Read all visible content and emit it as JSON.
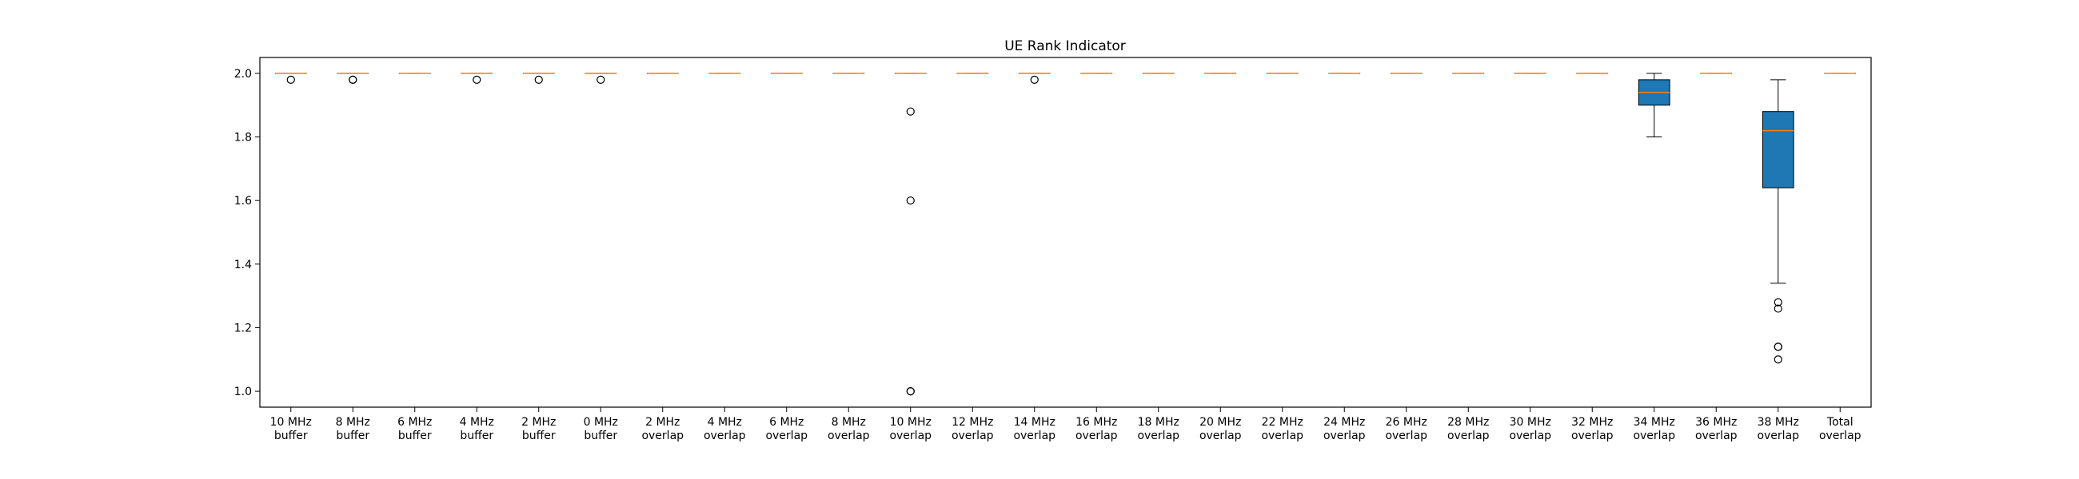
{
  "chart_data": {
    "type": "boxplot",
    "title": "UE Rank Indicator",
    "xlabel": "",
    "ylabel": "",
    "ylim": [
      0.95,
      2.05
    ],
    "yticks": [
      "1.0",
      "1.2",
      "1.4",
      "1.6",
      "1.8",
      "2.0"
    ],
    "grid": false,
    "colors": {
      "box_fill": "#1f77b4",
      "median": "#ff7f0e",
      "outline": "#000000"
    },
    "categories": [
      {
        "line1": "10 MHz",
        "line2": "buffer"
      },
      {
        "line1": "8 MHz",
        "line2": "buffer"
      },
      {
        "line1": "6 MHz",
        "line2": "buffer"
      },
      {
        "line1": "4 MHz",
        "line2": "buffer"
      },
      {
        "line1": "2 MHz",
        "line2": "buffer"
      },
      {
        "line1": "0 MHz",
        "line2": "buffer"
      },
      {
        "line1": "2 MHz",
        "line2": "overlap"
      },
      {
        "line1": "4 MHz",
        "line2": "overlap"
      },
      {
        "line1": "6 MHz",
        "line2": "overlap"
      },
      {
        "line1": "8 MHz",
        "line2": "overlap"
      },
      {
        "line1": "10 MHz",
        "line2": "overlap"
      },
      {
        "line1": "12 MHz",
        "line2": "overlap"
      },
      {
        "line1": "14 MHz",
        "line2": "overlap"
      },
      {
        "line1": "16 MHz",
        "line2": "overlap"
      },
      {
        "line1": "18 MHz",
        "line2": "overlap"
      },
      {
        "line1": "20 MHz",
        "line2": "overlap"
      },
      {
        "line1": "22 MHz",
        "line2": "overlap"
      },
      {
        "line1": "24 MHz",
        "line2": "overlap"
      },
      {
        "line1": "26 MHz",
        "line2": "overlap"
      },
      {
        "line1": "28 MHz",
        "line2": "overlap"
      },
      {
        "line1": "30 MHz",
        "line2": "overlap"
      },
      {
        "line1": "32 MHz",
        "line2": "overlap"
      },
      {
        "line1": "34 MHz",
        "line2": "overlap"
      },
      {
        "line1": "36 MHz",
        "line2": "overlap"
      },
      {
        "line1": "38 MHz",
        "line2": "overlap"
      },
      {
        "line1": "Total",
        "line2": "overlap"
      }
    ],
    "boxes": [
      {
        "q1": 2.0,
        "median": 2.0,
        "q3": 2.0,
        "whisker_low": 2.0,
        "whisker_high": 2.0,
        "outliers": [
          1.98
        ]
      },
      {
        "q1": 2.0,
        "median": 2.0,
        "q3": 2.0,
        "whisker_low": 2.0,
        "whisker_high": 2.0,
        "outliers": [
          1.98,
          1.98
        ]
      },
      {
        "q1": 2.0,
        "median": 2.0,
        "q3": 2.0,
        "whisker_low": 2.0,
        "whisker_high": 2.0,
        "outliers": []
      },
      {
        "q1": 2.0,
        "median": 2.0,
        "q3": 2.0,
        "whisker_low": 2.0,
        "whisker_high": 2.0,
        "outliers": [
          1.98
        ]
      },
      {
        "q1": 2.0,
        "median": 2.0,
        "q3": 2.0,
        "whisker_low": 2.0,
        "whisker_high": 2.0,
        "outliers": [
          1.98
        ]
      },
      {
        "q1": 2.0,
        "median": 2.0,
        "q3": 2.0,
        "whisker_low": 2.0,
        "whisker_high": 2.0,
        "outliers": [
          1.98
        ]
      },
      {
        "q1": 2.0,
        "median": 2.0,
        "q3": 2.0,
        "whisker_low": 2.0,
        "whisker_high": 2.0,
        "outliers": []
      },
      {
        "q1": 2.0,
        "median": 2.0,
        "q3": 2.0,
        "whisker_low": 2.0,
        "whisker_high": 2.0,
        "outliers": []
      },
      {
        "q1": 2.0,
        "median": 2.0,
        "q3": 2.0,
        "whisker_low": 2.0,
        "whisker_high": 2.0,
        "outliers": []
      },
      {
        "q1": 2.0,
        "median": 2.0,
        "q3": 2.0,
        "whisker_low": 2.0,
        "whisker_high": 2.0,
        "outliers": []
      },
      {
        "q1": 2.0,
        "median": 2.0,
        "q3": 2.0,
        "whisker_low": 2.0,
        "whisker_high": 2.0,
        "outliers": [
          1.88,
          1.6,
          1.0,
          1.0
        ]
      },
      {
        "q1": 2.0,
        "median": 2.0,
        "q3": 2.0,
        "whisker_low": 2.0,
        "whisker_high": 2.0,
        "outliers": []
      },
      {
        "q1": 2.0,
        "median": 2.0,
        "q3": 2.0,
        "whisker_low": 2.0,
        "whisker_high": 2.0,
        "outliers": [
          1.98
        ]
      },
      {
        "q1": 2.0,
        "median": 2.0,
        "q3": 2.0,
        "whisker_low": 2.0,
        "whisker_high": 2.0,
        "outliers": []
      },
      {
        "q1": 2.0,
        "median": 2.0,
        "q3": 2.0,
        "whisker_low": 2.0,
        "whisker_high": 2.0,
        "outliers": []
      },
      {
        "q1": 2.0,
        "median": 2.0,
        "q3": 2.0,
        "whisker_low": 2.0,
        "whisker_high": 2.0,
        "outliers": []
      },
      {
        "q1": 2.0,
        "median": 2.0,
        "q3": 2.0,
        "whisker_low": 2.0,
        "whisker_high": 2.0,
        "outliers": []
      },
      {
        "q1": 2.0,
        "median": 2.0,
        "q3": 2.0,
        "whisker_low": 2.0,
        "whisker_high": 2.0,
        "outliers": []
      },
      {
        "q1": 2.0,
        "median": 2.0,
        "q3": 2.0,
        "whisker_low": 2.0,
        "whisker_high": 2.0,
        "outliers": []
      },
      {
        "q1": 2.0,
        "median": 2.0,
        "q3": 2.0,
        "whisker_low": 2.0,
        "whisker_high": 2.0,
        "outliers": []
      },
      {
        "q1": 2.0,
        "median": 2.0,
        "q3": 2.0,
        "whisker_low": 2.0,
        "whisker_high": 2.0,
        "outliers": []
      },
      {
        "q1": 2.0,
        "median": 2.0,
        "q3": 2.0,
        "whisker_low": 2.0,
        "whisker_high": 2.0,
        "outliers": []
      },
      {
        "q1": 1.9,
        "median": 1.94,
        "q3": 1.98,
        "whisker_low": 1.8,
        "whisker_high": 2.0,
        "outliers": []
      },
      {
        "q1": 2.0,
        "median": 2.0,
        "q3": 2.0,
        "whisker_low": 2.0,
        "whisker_high": 2.0,
        "outliers": []
      },
      {
        "q1": 1.64,
        "median": 1.82,
        "q3": 1.88,
        "whisker_low": 1.34,
        "whisker_high": 1.98,
        "outliers": [
          1.28,
          1.26,
          1.14,
          1.14,
          1.1
        ]
      },
      {
        "q1": 2.0,
        "median": 2.0,
        "q3": 2.0,
        "whisker_low": 2.0,
        "whisker_high": 2.0,
        "outliers": []
      }
    ]
  }
}
